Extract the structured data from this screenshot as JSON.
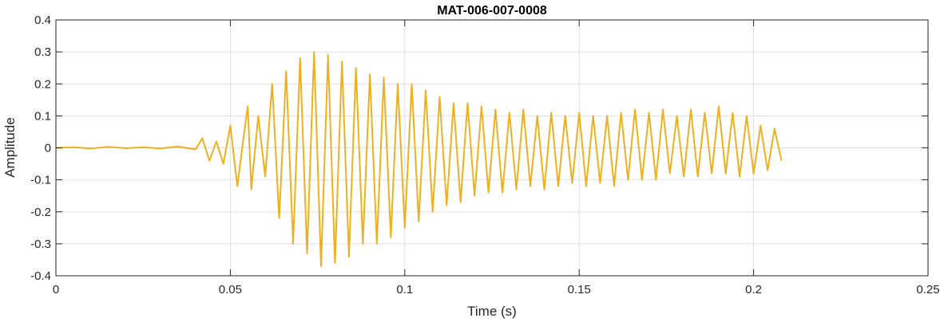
{
  "chart_data": {
    "type": "line",
    "title": "MAT-006-007-0008",
    "xlabel": "Time (s)",
    "ylabel": "Amplitude",
    "xlim": [
      0,
      0.25
    ],
    "ylim": [
      -0.4,
      0.4
    ],
    "grid": true,
    "x_ticks": [
      0,
      0.05,
      0.1,
      0.15,
      0.2,
      0.25
    ],
    "x_tick_labels": [
      "0",
      "0.05",
      "0.1",
      "0.15",
      "0.2",
      "0.25"
    ],
    "y_ticks": [
      -0.4,
      -0.3,
      -0.2,
      -0.1,
      0,
      0.1,
      0.2,
      0.3,
      0.4
    ],
    "y_tick_labels": [
      "-0.4",
      "-0.3",
      "-0.2",
      "-0.1",
      "0",
      "0.1",
      "0.2",
      "0.3",
      "0.4"
    ],
    "series": [
      {
        "color": "#EDB120",
        "x": [
          0,
          0.005,
          0.01,
          0.015,
          0.02,
          0.025,
          0.03,
          0.035,
          0.04,
          0.042,
          0.044,
          0.046,
          0.048,
          0.05,
          0.052,
          0.054,
          0.055,
          0.056,
          0.058,
          0.06,
          0.062,
          0.064,
          0.066,
          0.068,
          0.07,
          0.072,
          0.074,
          0.076,
          0.078,
          0.08,
          0.082,
          0.084,
          0.086,
          0.088,
          0.09,
          0.092,
          0.094,
          0.096,
          0.098,
          0.1,
          0.102,
          0.104,
          0.106,
          0.108,
          0.11,
          0.112,
          0.114,
          0.116,
          0.118,
          0.12,
          0.122,
          0.124,
          0.126,
          0.128,
          0.13,
          0.132,
          0.134,
          0.136,
          0.138,
          0.14,
          0.142,
          0.144,
          0.146,
          0.148,
          0.15,
          0.152,
          0.154,
          0.156,
          0.158,
          0.16,
          0.162,
          0.164,
          0.166,
          0.168,
          0.17,
          0.172,
          0.174,
          0.176,
          0.178,
          0.18,
          0.182,
          0.184,
          0.186,
          0.188,
          0.19,
          0.192,
          0.194,
          0.196,
          0.198,
          0.2,
          0.202,
          0.204,
          0.206,
          0.208
        ],
        "y": [
          0,
          0.002,
          -0.002,
          0.003,
          -0.001,
          0.002,
          -0.002,
          0.004,
          -0.005,
          0.03,
          -0.04,
          0.02,
          -0.05,
          0.07,
          -0.12,
          0.05,
          0.13,
          -0.13,
          0.1,
          -0.09,
          0.2,
          -0.22,
          0.24,
          -0.3,
          0.28,
          -0.33,
          0.3,
          -0.37,
          0.29,
          -0.36,
          0.27,
          -0.34,
          0.25,
          -0.3,
          0.23,
          -0.3,
          0.22,
          -0.28,
          0.2,
          -0.25,
          0.2,
          -0.23,
          0.18,
          -0.2,
          0.16,
          -0.18,
          0.14,
          -0.17,
          0.14,
          -0.15,
          0.13,
          -0.14,
          0.12,
          -0.14,
          0.11,
          -0.13,
          0.12,
          -0.12,
          0.1,
          -0.13,
          0.11,
          -0.12,
          0.1,
          -0.11,
          0.11,
          -0.12,
          0.1,
          -0.11,
          0.1,
          -0.12,
          0.11,
          -0.1,
          0.12,
          -0.1,
          0.11,
          -0.1,
          0.12,
          -0.08,
          0.1,
          -0.09,
          0.12,
          -0.09,
          0.11,
          -0.08,
          0.13,
          -0.08,
          0.11,
          -0.09,
          0.1,
          -0.08,
          0.07,
          -0.07,
          0.06,
          -0.04
        ]
      }
    ]
  }
}
